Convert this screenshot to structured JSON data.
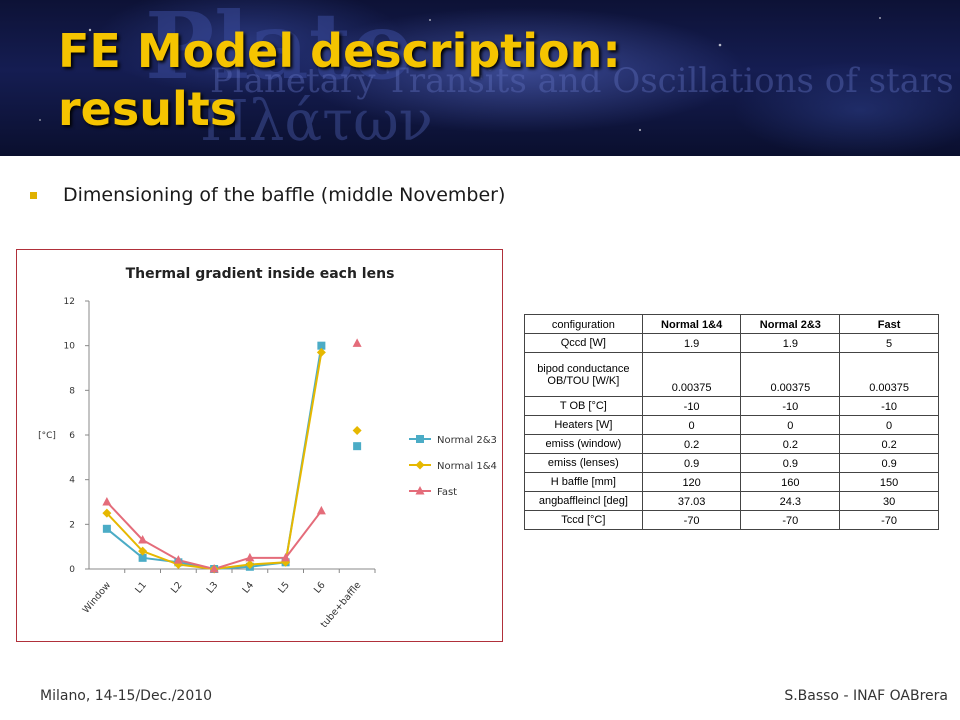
{
  "header": {
    "title_line1": "FE Model description:",
    "title_line2": "results",
    "background_text": "Plato",
    "background_subtitle": "Planetary Transits and Oscillations of stars",
    "background_greek": "Πλάτων"
  },
  "bullet": {
    "text": "Dimensioning of the baffle (middle November)"
  },
  "colors": {
    "title": "#f5c400",
    "normal23": "#4bacc6",
    "normal14": "#e6b800",
    "fast": "#e46c7a",
    "frame": "#b0303a"
  },
  "chart_data": {
    "type": "line",
    "title": "Thermal gradient inside each lens",
    "ylabel": "[°C]",
    "xlabel": "",
    "categories": [
      "Window",
      "L1",
      "L2",
      "L3",
      "L4",
      "L5",
      "L6",
      "tube+baffle"
    ],
    "ylim": [
      0,
      12
    ],
    "yticks": [
      0,
      2,
      4,
      6,
      8,
      10,
      12
    ],
    "legend_position": "right",
    "series": [
      {
        "name": "Normal 2&3",
        "values": [
          1.8,
          0.5,
          0.3,
          0.0,
          0.1,
          0.3,
          10.0,
          5.5
        ],
        "marker": "square",
        "color": "#4bacc6"
      },
      {
        "name": "Normal 1&4",
        "values": [
          2.5,
          0.8,
          0.2,
          0.0,
          0.2,
          0.3,
          9.7,
          6.2
        ],
        "marker": "diamond",
        "color": "#e6b800"
      },
      {
        "name": "Fast",
        "values": [
          3.0,
          1.3,
          0.4,
          0.0,
          0.5,
          0.5,
          2.6,
          10.1
        ],
        "marker": "triangle",
        "color": "#e46c7a"
      }
    ],
    "line_through": 7
  },
  "table": {
    "headers": [
      "configuration",
      "Normal 1&4",
      "Normal 2&3",
      "Fast"
    ],
    "rows": [
      [
        "Qccd [W]",
        "1.9",
        "1.9",
        "5"
      ],
      [
        "bipod conductance OB/TOU [W/K]",
        "0.00375",
        "0.00375",
        "0.00375"
      ],
      [
        "T OB [°C]",
        "-10",
        "-10",
        "-10"
      ],
      [
        "Heaters [W]",
        "0",
        "0",
        "0"
      ],
      [
        "emiss (window)",
        "0.2",
        "0.2",
        "0.2"
      ],
      [
        "emiss (lenses)",
        "0.9",
        "0.9",
        "0.9"
      ],
      [
        "H baffle [mm]",
        "120",
        "160",
        "150"
      ],
      [
        "angbaffleincl [deg]",
        "37.03",
        "24.3",
        "30"
      ],
      [
        "Tccd [°C]",
        "-70",
        "-70",
        "-70"
      ]
    ]
  },
  "footer": {
    "left": "Milano, 14-15/Dec./2010",
    "right": "S.Basso - INAF OABrera"
  }
}
